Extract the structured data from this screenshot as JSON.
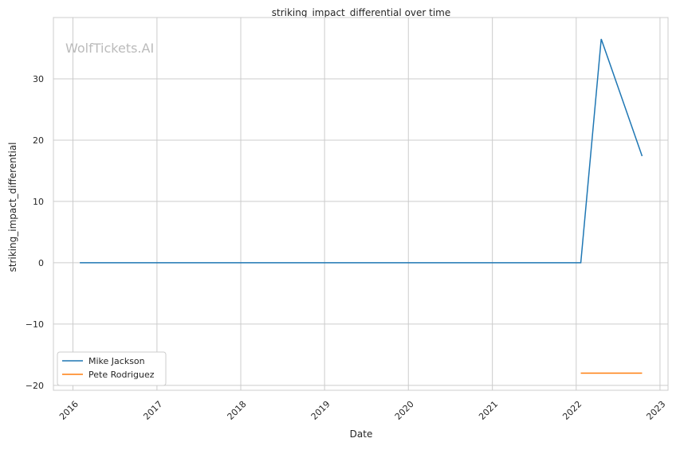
{
  "chart_data": {
    "type": "line",
    "title": "striking_impact_differential over time",
    "xlabel": "Date",
    "ylabel": "striking_impact_differential",
    "watermark": "WolfTickets.AI",
    "xlim": [
      "2015-10-08",
      "2023-02-05"
    ],
    "ylim": [
      -20.8,
      40
    ],
    "x_ticks": [
      "2016",
      "2017",
      "2018",
      "2019",
      "2020",
      "2021",
      "2022",
      "2023"
    ],
    "y_ticks": [
      -20,
      -10,
      0,
      10,
      20,
      30
    ],
    "y_tick_labels": [
      "−20",
      "−10",
      "0",
      "10",
      "20",
      "30"
    ],
    "grid": true,
    "legend_position": "lower-left",
    "series": [
      {
        "name": "Mike Jackson",
        "color": "#1f77b4",
        "points": [
          [
            "2016-01-31",
            0
          ],
          [
            "2022-01-21",
            0
          ],
          [
            "2022-04-20",
            36.5
          ],
          [
            "2022-10-15",
            17.4
          ]
        ]
      },
      {
        "name": "Pete Rodriguez",
        "color": "#ff7f0e",
        "points": [
          [
            "2022-01-21",
            -18
          ],
          [
            "2022-10-15",
            -18
          ]
        ]
      }
    ]
  }
}
